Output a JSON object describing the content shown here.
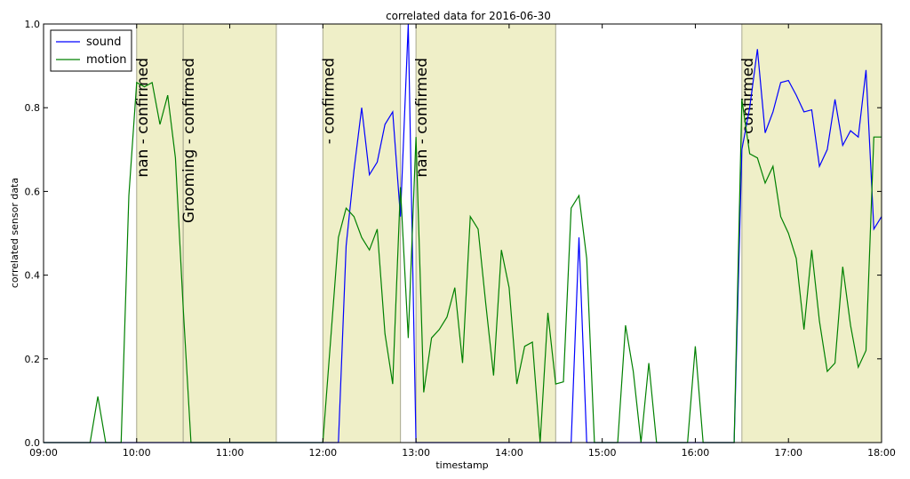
{
  "chart_data": {
    "type": "line",
    "title": "correlated data for 2016-06-30",
    "xlabel": "timestamp",
    "ylabel": "correlated sensor data",
    "xlim": [
      "09:00",
      "18:00"
    ],
    "ylim": [
      0,
      1.0
    ],
    "x_ticks": [
      "09:00",
      "10:00",
      "11:00",
      "12:00",
      "13:00",
      "14:00",
      "15:00",
      "16:00",
      "17:00",
      "18:00"
    ],
    "y_ticks": [
      "0.0",
      "0.2",
      "0.4",
      "0.6",
      "0.8",
      "1.0"
    ],
    "grid": false,
    "legend_position": "top-left",
    "highlight_color": "#efefc8",
    "spans": [
      {
        "start": "10:00",
        "end": "10:30",
        "label": "nan - confirmed"
      },
      {
        "start": "10:30",
        "end": "11:30",
        "label": "Grooming - confirmed"
      },
      {
        "start": "12:00",
        "end": "12:50",
        "label": "- confirmed"
      },
      {
        "start": "13:00",
        "end": "14:30",
        "label": "nan - confirmed"
      },
      {
        "start": "16:30",
        "end": "18:00",
        "label": "- confirmed"
      }
    ],
    "series": [
      {
        "name": "sound",
        "color": "#0000ff",
        "points": [
          [
            "09:00",
            0
          ],
          [
            "12:10",
            0
          ],
          [
            "12:15",
            0.47
          ],
          [
            "12:20",
            0.65
          ],
          [
            "12:25",
            0.8
          ],
          [
            "12:30",
            0.64
          ],
          [
            "12:35",
            0.67
          ],
          [
            "12:40",
            0.76
          ],
          [
            "12:45",
            0.79
          ],
          [
            "12:50",
            0.54
          ],
          [
            "12:55",
            1.0
          ],
          [
            "13:00",
            0
          ],
          [
            "14:40",
            0
          ],
          [
            "14:45",
            0.49
          ],
          [
            "14:50",
            0
          ],
          [
            "16:25",
            0
          ],
          [
            "16:30",
            0.7
          ],
          [
            "16:35",
            0.8
          ],
          [
            "16:40",
            0.94
          ],
          [
            "16:45",
            0.74
          ],
          [
            "16:50",
            0.79
          ],
          [
            "16:55",
            0.86
          ],
          [
            "17:00",
            0.865
          ],
          [
            "17:05",
            0.83
          ],
          [
            "17:10",
            0.79
          ],
          [
            "17:15",
            0.795
          ],
          [
            "17:20",
            0.66
          ],
          [
            "17:25",
            0.7
          ],
          [
            "17:30",
            0.82
          ],
          [
            "17:35",
            0.71
          ],
          [
            "17:40",
            0.745
          ],
          [
            "17:45",
            0.73
          ],
          [
            "17:50",
            0.89
          ],
          [
            "17:55",
            0.51
          ],
          [
            "18:00",
            0.54
          ]
        ]
      },
      {
        "name": "motion",
        "color": "#008000",
        "points": [
          [
            "09:00",
            0
          ],
          [
            "09:30",
            0
          ],
          [
            "09:35",
            0.11
          ],
          [
            "09:40",
            0
          ],
          [
            "09:50",
            0
          ],
          [
            "09:55",
            0.59
          ],
          [
            "10:00",
            0.86
          ],
          [
            "10:05",
            0.85
          ],
          [
            "10:10",
            0.86
          ],
          [
            "10:15",
            0.76
          ],
          [
            "10:20",
            0.83
          ],
          [
            "10:25",
            0.68
          ],
          [
            "10:30",
            0.32
          ],
          [
            "10:35",
            0
          ],
          [
            "11:55",
            0
          ],
          [
            "12:00",
            0
          ],
          [
            "12:10",
            0.49
          ],
          [
            "12:15",
            0.56
          ],
          [
            "12:20",
            0.54
          ],
          [
            "12:25",
            0.49
          ],
          [
            "12:30",
            0.46
          ],
          [
            "12:35",
            0.51
          ],
          [
            "12:40",
            0.26
          ],
          [
            "12:45",
            0.14
          ],
          [
            "12:50",
            0.61
          ],
          [
            "12:55",
            0.25
          ],
          [
            "13:00",
            0.73
          ],
          [
            "13:05",
            0.12
          ],
          [
            "13:10",
            0.25
          ],
          [
            "13:15",
            0.27
          ],
          [
            "13:20",
            0.3
          ],
          [
            "13:25",
            0.37
          ],
          [
            "13:30",
            0.19
          ],
          [
            "13:35",
            0.54
          ],
          [
            "13:40",
            0.51
          ],
          [
            "13:45",
            0.33
          ],
          [
            "13:50",
            0.16
          ],
          [
            "13:55",
            0.46
          ],
          [
            "14:00",
            0.37
          ],
          [
            "14:05",
            0.14
          ],
          [
            "14:10",
            0.23
          ],
          [
            "14:15",
            0.24
          ],
          [
            "14:20",
            0
          ],
          [
            "14:25",
            0.31
          ],
          [
            "14:30",
            0.14
          ],
          [
            "14:35",
            0.145
          ],
          [
            "14:40",
            0.56
          ],
          [
            "14:45",
            0.59
          ],
          [
            "14:50",
            0.44
          ],
          [
            "14:55",
            0
          ],
          [
            "15:10",
            0
          ],
          [
            "15:15",
            0.28
          ],
          [
            "15:20",
            0.17
          ],
          [
            "15:25",
            0
          ],
          [
            "15:30",
            0.19
          ],
          [
            "15:35",
            0
          ],
          [
            "15:55",
            0
          ],
          [
            "16:00",
            0.23
          ],
          [
            "16:05",
            0
          ],
          [
            "16:25",
            0
          ],
          [
            "16:30",
            0.82
          ],
          [
            "16:35",
            0.69
          ],
          [
            "16:40",
            0.68
          ],
          [
            "16:45",
            0.62
          ],
          [
            "16:50",
            0.66
          ],
          [
            "16:55",
            0.54
          ],
          [
            "17:00",
            0.5
          ],
          [
            "17:05",
            0.44
          ],
          [
            "17:10",
            0.27
          ],
          [
            "17:15",
            0.46
          ],
          [
            "17:20",
            0.29
          ],
          [
            "17:25",
            0.17
          ],
          [
            "17:30",
            0.19
          ],
          [
            "17:35",
            0.42
          ],
          [
            "17:40",
            0.28
          ],
          [
            "17:45",
            0.18
          ],
          [
            "17:50",
            0.22
          ],
          [
            "17:55",
            0.73
          ],
          [
            "18:00",
            0.73
          ]
        ]
      }
    ]
  }
}
